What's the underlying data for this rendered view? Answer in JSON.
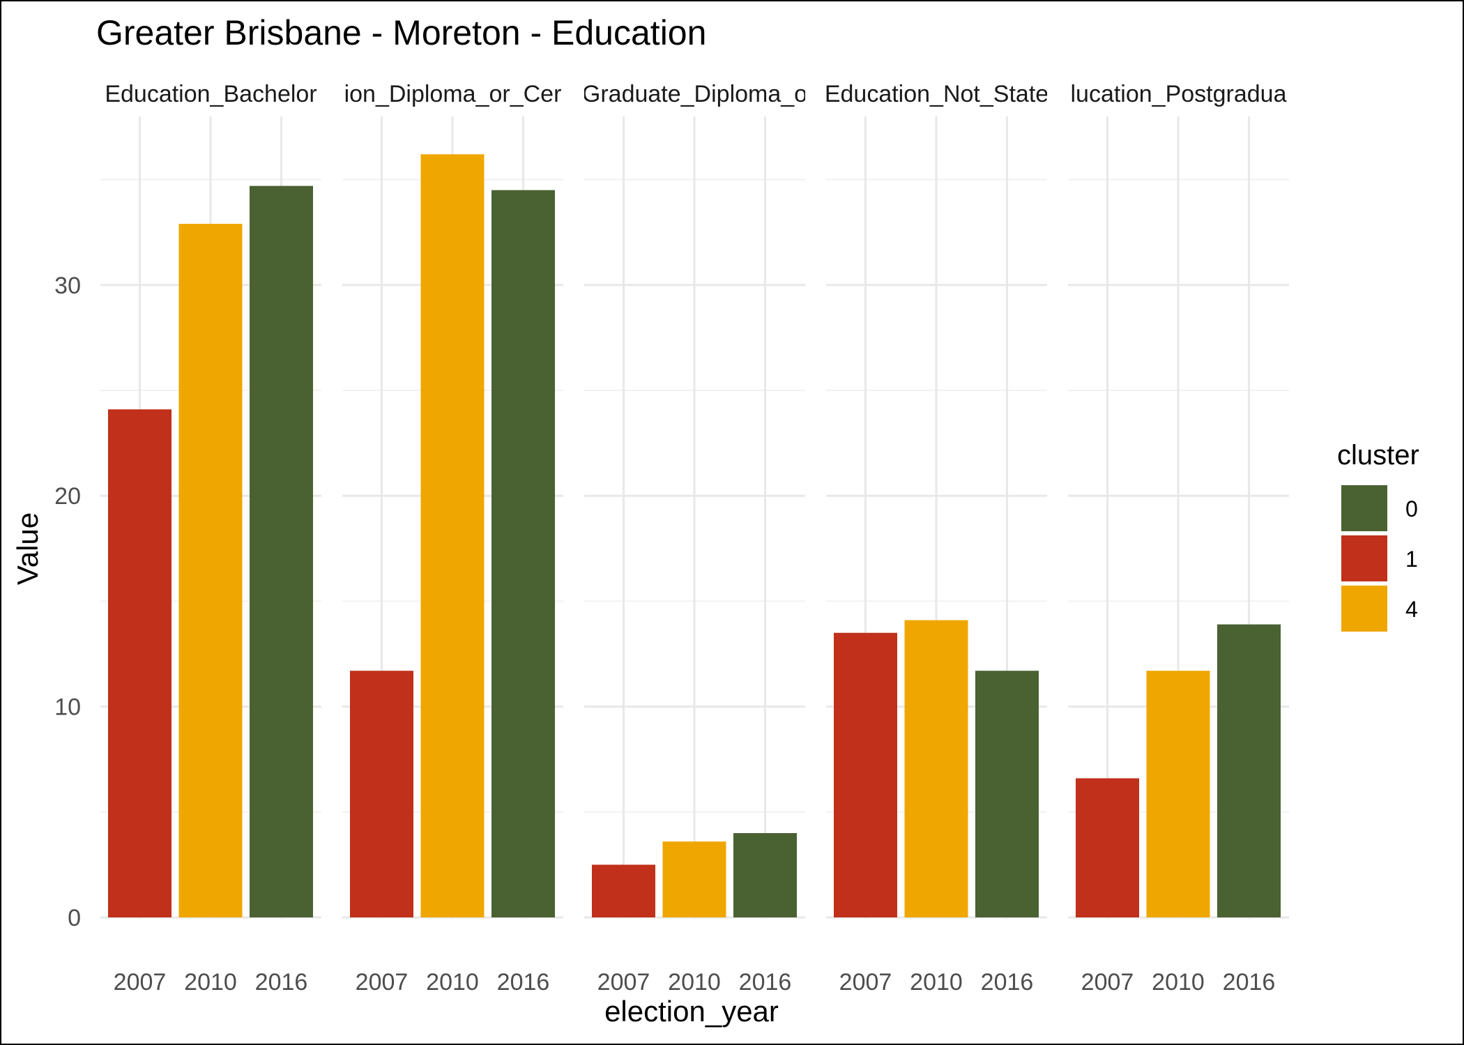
{
  "chart_data": {
    "type": "bar",
    "title": "Greater Brisbane - Moreton - Education",
    "xlabel": "election_year",
    "ylabel": "Value",
    "ylim": [
      0,
      38
    ],
    "yticks": [
      0,
      10,
      20,
      30
    ],
    "grid": true,
    "legend": {
      "title": "cluster",
      "position": "right",
      "entries": [
        {
          "label": "0",
          "color": "#4a6132"
        },
        {
          "label": "1",
          "color": "#c0301a"
        },
        {
          "label": "4",
          "color": "#efa700"
        }
      ]
    },
    "categories": [
      "2007",
      "2010",
      "2016"
    ],
    "category_clusters": [
      "1",
      "4",
      "0"
    ],
    "facets": [
      {
        "label": "Education_Bachelor",
        "values": [
          24.1,
          32.9,
          34.7
        ]
      },
      {
        "label": "ion_Diploma_or_Cer",
        "values": [
          11.7,
          36.2,
          34.5
        ]
      },
      {
        "label": "Graduate_Diploma_o",
        "values": [
          2.5,
          3.6,
          4.0
        ]
      },
      {
        "label": "Education_Not_State",
        "values": [
          13.5,
          14.1,
          11.7
        ]
      },
      {
        "label": "lucation_Postgradua",
        "values": [
          6.6,
          11.7,
          13.9
        ]
      }
    ]
  }
}
